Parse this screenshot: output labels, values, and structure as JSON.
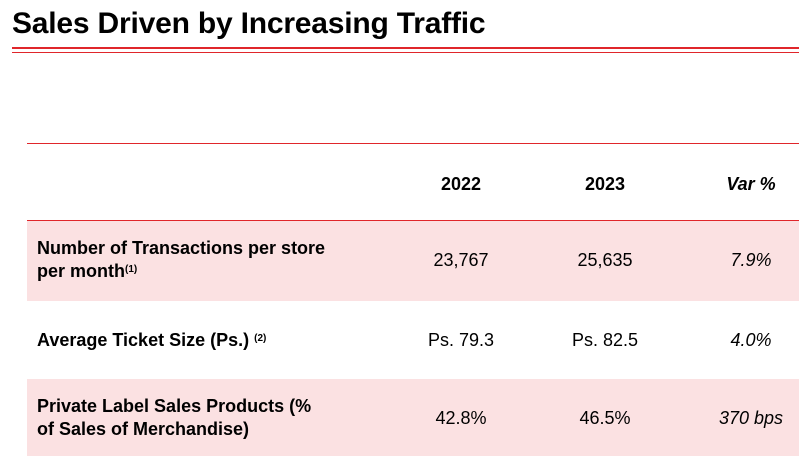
{
  "title": "Sales Driven by Increasing Traffic",
  "table": {
    "headers": [
      "",
      "2022",
      "2023",
      "Var %"
    ],
    "rows": [
      {
        "label_line1": "Number of Transactions per store",
        "label_line2": "per month",
        "footnote": "(1)",
        "values": [
          "23,767",
          "25,635",
          "7.9%"
        ]
      },
      {
        "label_line1": "Average Ticket Size (Ps.)",
        "footnote": "(2)",
        "values": [
          "Ps. 79.3",
          "Ps. 82.5",
          "4.0%"
        ]
      },
      {
        "label_line1": "Private Label Sales Products (%",
        "label_line2": "of Sales of Merchandise)",
        "values": [
          "42.8%",
          "46.5%",
          "370 bps"
        ]
      }
    ]
  },
  "colors": {
    "accent": "#e0262b",
    "row_shade": "#fbe1e2"
  }
}
